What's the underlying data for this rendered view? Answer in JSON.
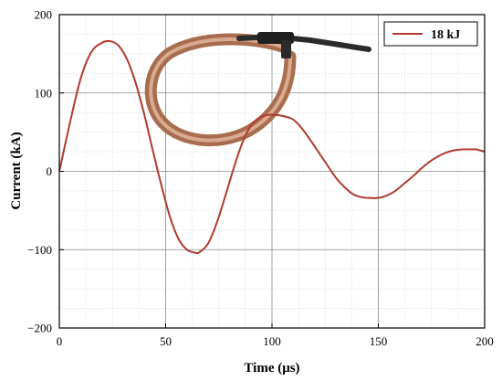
{
  "chart_data": {
    "type": "line",
    "title": "",
    "xlabel": "Time (μs)",
    "ylabel": "Current (kA)",
    "xlim": [
      0,
      200
    ],
    "ylim": [
      -200,
      200
    ],
    "x_ticks": [
      0,
      50,
      100,
      150,
      200
    ],
    "y_ticks": [
      -200,
      -100,
      0,
      100,
      200
    ],
    "grid": true,
    "legend_position": "top-right",
    "series": [
      {
        "name": "18 kJ",
        "color": "#b03a2e",
        "x": [
          0,
          5,
          10,
          15,
          20,
          24,
          28,
          32,
          36,
          40,
          44,
          48,
          52,
          56,
          60,
          64,
          66,
          70,
          74,
          78,
          82,
          86,
          90,
          94,
          98,
          102,
          106,
          110,
          114,
          118,
          122,
          126,
          130,
          134,
          138,
          142,
          146,
          150,
          154,
          158,
          162,
          166,
          170,
          174,
          178,
          182,
          186,
          190,
          194,
          196,
          200
        ],
        "y": [
          0,
          62,
          118,
          152,
          164,
          166,
          160,
          142,
          112,
          72,
          26,
          -18,
          -58,
          -86,
          -100,
          -104,
          -103,
          -92,
          -66,
          -32,
          4,
          36,
          58,
          68,
          72,
          72,
          70,
          66,
          55,
          40,
          24,
          8,
          -8,
          -20,
          -29,
          -33,
          -34,
          -34,
          -31,
          -25,
          -16,
          -7,
          3,
          12,
          19,
          24,
          27,
          28,
          28,
          28,
          25
        ]
      }
    ],
    "inset_image": "cable-coil-photo"
  }
}
